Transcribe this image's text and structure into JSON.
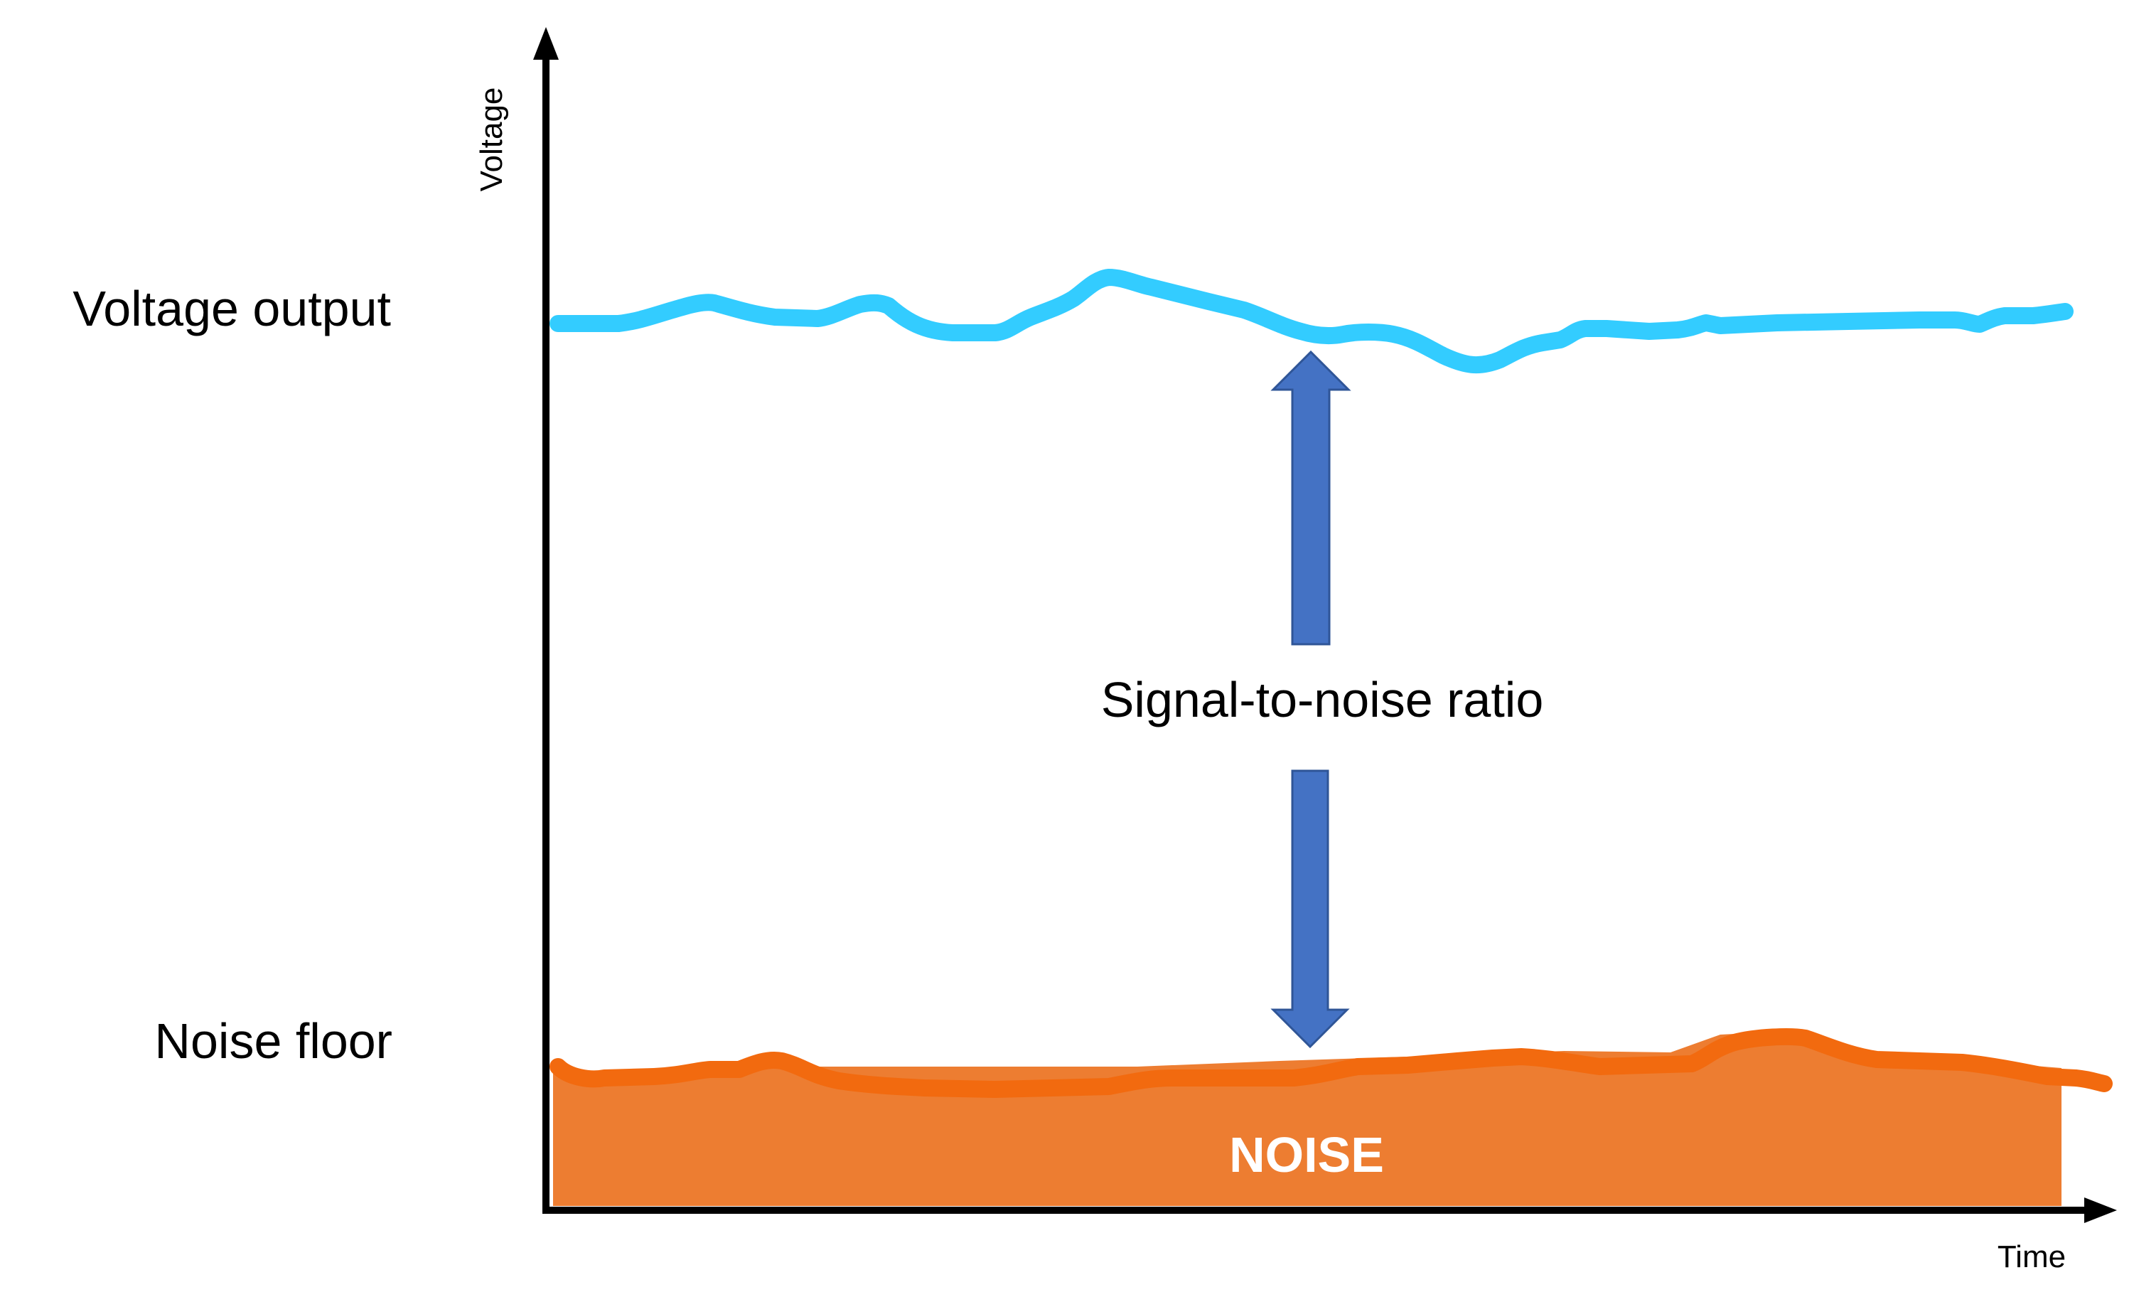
{
  "axes": {
    "y_label": "Voltage",
    "x_label": "Time"
  },
  "labels": {
    "voltage_output": "Voltage output",
    "noise_floor": "Noise floor",
    "snr": "Signal-to-noise ratio",
    "noise_region": "NOISE"
  },
  "colors": {
    "signal_line": "#33CCFF",
    "noise_line": "#F26A0F",
    "noise_fill": "#ED7D31",
    "arrow": "#4472C4",
    "arrow_outline": "#2F5597",
    "axis": "#000000"
  }
}
